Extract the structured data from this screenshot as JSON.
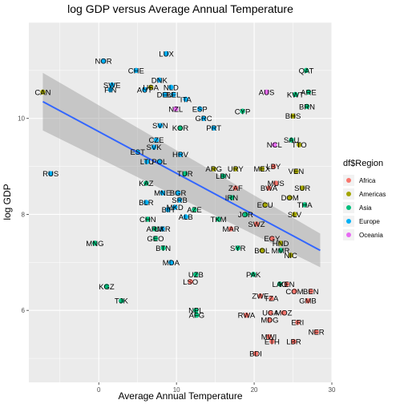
{
  "chart_data": {
    "type": "scatter",
    "title": "log GDP versus Average Annual Temperature",
    "xlabel": "Average Annual Temperature",
    "ylabel": "log GDP",
    "xlim": [
      -9,
      30
    ],
    "ylim": [
      4.5,
      12.0
    ],
    "x_ticks": [
      0,
      10,
      20,
      30
    ],
    "x_tick_labels": [
      "0",
      "10",
      "20",
      "30"
    ],
    "y_ticks": [
      6,
      8,
      10
    ],
    "y_tick_labels": [
      "6",
      "8",
      "10"
    ],
    "grid": true,
    "legend": {
      "title": "df$Region",
      "placement": "right",
      "entries": [
        "Africa",
        "Americas",
        "Asia",
        "Europe",
        "Oceania"
      ]
    },
    "colors": {
      "Africa": "#F8766D",
      "Americas": "#A3A500",
      "Asia": "#00BF7D",
      "Europe": "#00B0F6",
      "Oceania": "#E76BF3",
      "panel": "#EBEBEB",
      "grid": "#FFFFFF",
      "fit_line": "#3366FF",
      "band": "#999999"
    },
    "fit": {
      "type": "linear",
      "x": [
        -7.2,
        28.5
      ],
      "y": [
        10.35,
        7.25
      ],
      "ci_upper": [
        10.95,
        7.6
      ],
      "ci_lower": [
        9.75,
        6.9
      ]
    },
    "points": [
      {
        "label": "LUX",
        "x": 8.7,
        "y": 11.35,
        "region": "Europe"
      },
      {
        "label": "NOR",
        "x": 0.6,
        "y": 11.2,
        "region": "Europe"
      },
      {
        "label": "CHE",
        "x": 4.8,
        "y": 11.0,
        "region": "Europe"
      },
      {
        "label": "QAT",
        "x": 26.7,
        "y": 11.0,
        "region": "Asia"
      },
      {
        "label": "DNK",
        "x": 7.8,
        "y": 10.8,
        "region": "Europe"
      },
      {
        "label": "SWE",
        "x": 1.7,
        "y": 10.7,
        "region": "Europe"
      },
      {
        "label": "FIN",
        "x": 1.5,
        "y": 10.6,
        "region": "Europe"
      },
      {
        "label": "USA",
        "x": 6.7,
        "y": 10.65,
        "region": "Americas"
      },
      {
        "label": "NLD",
        "x": 9.3,
        "y": 10.65,
        "region": "Europe"
      },
      {
        "label": "AUT",
        "x": 5.9,
        "y": 10.6,
        "region": "Europe"
      },
      {
        "label": "CAN",
        "x": -7.2,
        "y": 10.55,
        "region": "Americas"
      },
      {
        "label": "AUS",
        "x": 21.6,
        "y": 10.55,
        "region": "Oceania"
      },
      {
        "label": "ARE",
        "x": 27.0,
        "y": 10.55,
        "region": "Asia"
      },
      {
        "label": "DEU",
        "x": 8.5,
        "y": 10.5,
        "region": "Europe"
      },
      {
        "label": "BEL",
        "x": 9.6,
        "y": 10.5,
        "region": "Europe"
      },
      {
        "label": "KWT",
        "x": 25.3,
        "y": 10.5,
        "region": "Asia"
      },
      {
        "label": "ITA",
        "x": 11.2,
        "y": 10.4,
        "region": "Europe"
      },
      {
        "label": "BRN",
        "x": 26.8,
        "y": 10.25,
        "region": "Asia"
      },
      {
        "label": "NZL",
        "x": 9.9,
        "y": 10.2,
        "region": "Oceania"
      },
      {
        "label": "ESP",
        "x": 13.0,
        "y": 10.2,
        "region": "Europe"
      },
      {
        "label": "CYP",
        "x": 18.5,
        "y": 10.15,
        "region": "Asia"
      },
      {
        "label": "GRC",
        "x": 13.5,
        "y": 10.0,
        "region": "Europe"
      },
      {
        "label": "BHS",
        "x": 25.0,
        "y": 10.05,
        "region": "Americas"
      },
      {
        "label": "SVN",
        "x": 7.9,
        "y": 9.85,
        "region": "Europe"
      },
      {
        "label": "KOR",
        "x": 10.5,
        "y": 9.8,
        "region": "Asia"
      },
      {
        "label": "PRT",
        "x": 14.8,
        "y": 9.8,
        "region": "Europe"
      },
      {
        "label": "CZE",
        "x": 7.4,
        "y": 9.55,
        "region": "Europe"
      },
      {
        "label": "SAU",
        "x": 24.8,
        "y": 9.55,
        "region": "Asia"
      },
      {
        "label": "NCL",
        "x": 22.6,
        "y": 9.45,
        "region": "Oceania"
      },
      {
        "label": "TTO",
        "x": 25.8,
        "y": 9.45,
        "region": "Americas"
      },
      {
        "label": "SVK",
        "x": 7.1,
        "y": 9.4,
        "region": "Europe"
      },
      {
        "label": "EST",
        "x": 5.0,
        "y": 9.3,
        "region": "Europe"
      },
      {
        "label": "HRV",
        "x": 10.5,
        "y": 9.25,
        "region": "Europe"
      },
      {
        "label": "LTU",
        "x": 6.2,
        "y": 9.1,
        "region": "Europe"
      },
      {
        "label": "POL",
        "x": 7.8,
        "y": 9.1,
        "region": "Europe"
      },
      {
        "label": "RUS",
        "x": -6.2,
        "y": 8.85,
        "region": "Europe"
      },
      {
        "label": "TUR",
        "x": 11.1,
        "y": 8.85,
        "region": "Asia"
      },
      {
        "label": "ARG",
        "x": 14.8,
        "y": 8.95,
        "region": "Americas"
      },
      {
        "label": "URY",
        "x": 17.6,
        "y": 8.95,
        "region": "Americas"
      },
      {
        "label": "MEX",
        "x": 21.0,
        "y": 8.95,
        "region": "Americas"
      },
      {
        "label": "LBY",
        "x": 22.5,
        "y": 9.0,
        "region": "Africa"
      },
      {
        "label": "VEN",
        "x": 25.4,
        "y": 8.9,
        "region": "Americas"
      },
      {
        "label": "LBN",
        "x": 16.0,
        "y": 8.8,
        "region": "Asia"
      },
      {
        "label": "KAZ",
        "x": 6.1,
        "y": 8.65,
        "region": "Asia"
      },
      {
        "label": "MUS",
        "x": 22.8,
        "y": 8.65,
        "region": "Africa"
      },
      {
        "label": "ZAF",
        "x": 17.6,
        "y": 8.55,
        "region": "Africa"
      },
      {
        "label": "BWA",
        "x": 21.9,
        "y": 8.55,
        "region": "Africa"
      },
      {
        "label": "SUR",
        "x": 26.2,
        "y": 8.55,
        "region": "Americas"
      },
      {
        "label": "MNE",
        "x": 8.2,
        "y": 8.45,
        "region": "Europe"
      },
      {
        "label": "BGR",
        "x": 10.2,
        "y": 8.45,
        "region": "Europe"
      },
      {
        "label": "IRN",
        "x": 17.1,
        "y": 8.35,
        "region": "Asia"
      },
      {
        "label": "DOM",
        "x": 24.6,
        "y": 8.35,
        "region": "Americas"
      },
      {
        "label": "SRB",
        "x": 10.4,
        "y": 8.3,
        "region": "Europe"
      },
      {
        "label": "BLR",
        "x": 6.1,
        "y": 8.25,
        "region": "Europe"
      },
      {
        "label": "THA",
        "x": 26.5,
        "y": 8.2,
        "region": "Asia"
      },
      {
        "label": "ECU",
        "x": 21.4,
        "y": 8.2,
        "region": "Americas"
      },
      {
        "label": "MKD",
        "x": 9.8,
        "y": 8.15,
        "region": "Europe"
      },
      {
        "label": "BIH",
        "x": 8.9,
        "y": 8.1,
        "region": "Europe"
      },
      {
        "label": "AZE",
        "x": 12.3,
        "y": 8.1,
        "region": "Asia"
      },
      {
        "label": "ALB",
        "x": 11.2,
        "y": 7.95,
        "region": "Europe"
      },
      {
        "label": "JOR",
        "x": 18.9,
        "y": 8.0,
        "region": "Asia"
      },
      {
        "label": "SLV",
        "x": 25.2,
        "y": 8.0,
        "region": "Americas"
      },
      {
        "label": "CHN",
        "x": 6.3,
        "y": 7.9,
        "region": "Asia"
      },
      {
        "label": "TKM",
        "x": 15.4,
        "y": 7.9,
        "region": "Asia"
      },
      {
        "label": "SWZ",
        "x": 20.3,
        "y": 7.8,
        "region": "Africa"
      },
      {
        "label": "ARM",
        "x": 7.2,
        "y": 7.7,
        "region": "Asia"
      },
      {
        "label": "UKR",
        "x": 8.2,
        "y": 7.7,
        "region": "Europe"
      },
      {
        "label": "MAR",
        "x": 17.0,
        "y": 7.7,
        "region": "Africa"
      },
      {
        "label": "GEO",
        "x": 7.3,
        "y": 7.5,
        "region": "Asia"
      },
      {
        "label": "EGY",
        "x": 22.3,
        "y": 7.5,
        "region": "Africa"
      },
      {
        "label": "MNG",
        "x": -0.5,
        "y": 7.4,
        "region": "Asia"
      },
      {
        "label": "HND",
        "x": 23.4,
        "y": 7.4,
        "region": "Americas"
      },
      {
        "label": "BTN",
        "x": 8.3,
        "y": 7.3,
        "region": "Asia"
      },
      {
        "label": "SYR",
        "x": 17.9,
        "y": 7.3,
        "region": "Asia"
      },
      {
        "label": "BOL",
        "x": 21.0,
        "y": 7.25,
        "region": "Americas"
      },
      {
        "label": "MMR",
        "x": 23.4,
        "y": 7.25,
        "region": "Asia"
      },
      {
        "label": "NIC",
        "x": 24.7,
        "y": 7.15,
        "region": "Americas"
      },
      {
        "label": "MDA",
        "x": 9.3,
        "y": 7.0,
        "region": "Europe"
      },
      {
        "label": "UZB",
        "x": 12.5,
        "y": 6.75,
        "region": "Asia"
      },
      {
        "label": "PAK",
        "x": 19.9,
        "y": 6.75,
        "region": "Asia"
      },
      {
        "label": "LSO",
        "x": 11.8,
        "y": 6.6,
        "region": "Africa"
      },
      {
        "label": "LAO",
        "x": 23.3,
        "y": 6.55,
        "region": "Asia"
      },
      {
        "label": "KEN",
        "x": 24.2,
        "y": 6.55,
        "region": "Africa"
      },
      {
        "label": "KGZ",
        "x": 1.0,
        "y": 6.5,
        "region": "Asia"
      },
      {
        "label": "COM",
        "x": 25.2,
        "y": 6.4,
        "region": "Africa"
      },
      {
        "label": "BEN",
        "x": 27.3,
        "y": 6.4,
        "region": "Africa"
      },
      {
        "label": "ZWE",
        "x": 20.8,
        "y": 6.3,
        "region": "Africa"
      },
      {
        "label": "TZA",
        "x": 22.2,
        "y": 6.25,
        "region": "Africa"
      },
      {
        "label": "GMB",
        "x": 26.9,
        "y": 6.2,
        "region": "Africa"
      },
      {
        "label": "TJK",
        "x": 2.9,
        "y": 6.2,
        "region": "Asia"
      },
      {
        "label": "NPL",
        "x": 12.5,
        "y": 6.0,
        "region": "Asia"
      },
      {
        "label": "AFG",
        "x": 12.6,
        "y": 5.9,
        "region": "Asia"
      },
      {
        "label": "RWA",
        "x": 19.0,
        "y": 5.9,
        "region": "Africa"
      },
      {
        "label": "UGA",
        "x": 22.1,
        "y": 5.95,
        "region": "Africa"
      },
      {
        "label": "MOZ",
        "x": 23.8,
        "y": 5.95,
        "region": "Africa"
      },
      {
        "label": "MDG",
        "x": 22.0,
        "y": 5.8,
        "region": "Africa"
      },
      {
        "label": "ERI",
        "x": 25.6,
        "y": 5.75,
        "region": "Africa"
      },
      {
        "label": "NER",
        "x": 28.0,
        "y": 5.55,
        "region": "Africa"
      },
      {
        "label": "MWI",
        "x": 21.9,
        "y": 5.45,
        "region": "Africa"
      },
      {
        "label": "ETH",
        "x": 22.3,
        "y": 5.35,
        "region": "Africa"
      },
      {
        "label": "LBR",
        "x": 25.1,
        "y": 5.35,
        "region": "Africa"
      },
      {
        "label": "BDI",
        "x": 20.2,
        "y": 5.1,
        "region": "Africa"
      }
    ]
  }
}
